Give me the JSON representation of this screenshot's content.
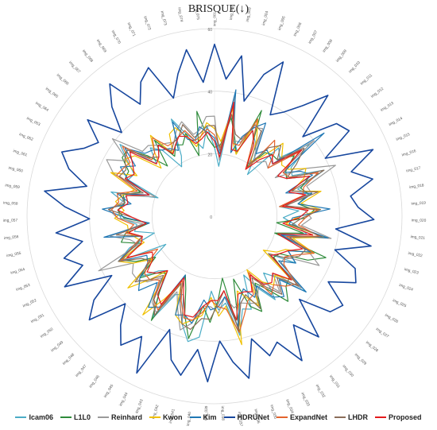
{
  "chart_data": {
    "type": "radar",
    "title": "BRISQUE(↓)",
    "rlim": [
      0,
      60
    ],
    "radial_ticks": [
      0,
      20,
      40,
      60
    ],
    "radial_tick_labels": [
      "0",
      "20",
      "40",
      "60"
    ],
    "grid": true,
    "legend_position": "bottom",
    "categories": [
      "img_001",
      "img_002",
      "img_003",
      "img_004",
      "img_005",
      "img_006",
      "img_007",
      "img_008",
      "img_009",
      "img_010",
      "img_011",
      "img_012",
      "img_013",
      "img_014",
      "img_015",
      "img_016",
      "img_017",
      "img_018",
      "img_019",
      "img_020",
      "img_021",
      "img_022",
      "img_023",
      "img_024",
      "img_025",
      "img_026",
      "img_027",
      "img_028",
      "img_029",
      "img_030",
      "img_031",
      "img_032",
      "img_033",
      "img_034",
      "img_035",
      "img_036",
      "img_037",
      "img_038",
      "img_039",
      "img_040",
      "img_041",
      "img_042",
      "img_043",
      "img_044",
      "img_045",
      "img_046",
      "img_047",
      "img_048",
      "img_049",
      "img_050",
      "img_051",
      "img_052",
      "img_053",
      "img_054",
      "img_055",
      "img_056",
      "img_057",
      "img_058",
      "img_059",
      "img_060",
      "img_061",
      "img_062",
      "img_063",
      "img_064",
      "img_065",
      "img_066",
      "img_067",
      "img_068",
      "img_069",
      "img_070",
      "img_071",
      "img_072",
      "img_073",
      "img_074",
      "img_075"
    ],
    "series": [
      {
        "name": "Icam06",
        "color": "#4bacc6",
        "values": [
          22,
          16,
          40,
          25,
          22,
          30,
          27,
          24,
          17,
          30,
          28,
          38,
          29,
          28,
          38,
          28,
          31,
          21,
          27,
          22,
          26,
          30,
          23,
          33,
          26,
          30,
          21,
          38,
          28,
          24,
          33,
          27,
          21,
          32,
          31,
          39,
          28,
          30,
          24,
          39,
          41,
          36,
          27,
          28,
          38,
          30,
          23,
          25,
          30,
          25,
          18,
          34,
          29,
          20,
          26,
          25,
          30,
          31,
          29,
          34,
          19,
          30,
          29,
          33,
          38,
          25,
          30,
          27,
          19,
          22,
          34,
          28,
          25,
          22,
          29
        ]
      },
      {
        "name": "L1L0",
        "color": "#2e8b3a",
        "values": [
          22,
          23,
          32,
          26,
          21,
          37,
          24,
          19,
          26,
          27,
          27,
          32,
          27,
          26,
          33,
          29,
          31,
          27,
          32,
          29,
          20,
          29,
          20,
          38,
          33,
          24,
          23,
          31,
          32,
          36,
          29,
          25,
          34,
          31,
          21,
          38,
          20,
          27,
          34,
          29,
          40,
          33,
          25,
          21,
          39,
          30,
          24,
          26,
          31,
          23,
          29,
          33,
          25,
          31,
          29,
          21,
          29,
          31,
          29,
          30,
          25,
          31,
          31,
          35,
          35,
          29,
          22,
          31,
          23,
          26,
          25,
          28,
          20,
          34,
          25
        ]
      },
      {
        "name": "Reinhard",
        "color": "#9a9a9a",
        "values": [
          32,
          18,
          39,
          25,
          25,
          31,
          32,
          23,
          22,
          24,
          23,
          40,
          23,
          33,
          42,
          31,
          32,
          23,
          29,
          31,
          28,
          38,
          23,
          32,
          37,
          26,
          26,
          36,
          26,
          32,
          26,
          27,
          31,
          30,
          29,
          30,
          26,
          31,
          29,
          29,
          35,
          38,
          32,
          27,
          36,
          34,
          26,
          30,
          32,
          32,
          30,
          41,
          26,
          28,
          34,
          23,
          31,
          34,
          30,
          29,
          20,
          35,
          39,
          33,
          41,
          31,
          31,
          29,
          28,
          27,
          30,
          32,
          27,
          28,
          32
        ]
      },
      {
        "name": "Kwon",
        "color": "#f0c000",
        "values": [
          28,
          24,
          35,
          24,
          21,
          34,
          28,
          21,
          24,
          32,
          29,
          27,
          28,
          33,
          31,
          26,
          35,
          28,
          34,
          26,
          23,
          36,
          26,
          34,
          25,
          23,
          19,
          32,
          27,
          29,
          26,
          20,
          32,
          28,
          25,
          42,
          29,
          32,
          26,
          32,
          34,
          36,
          34,
          24,
          31,
          39,
          23,
          29,
          36,
          24,
          30,
          34,
          24,
          26,
          28,
          28,
          32,
          29,
          32,
          30,
          27,
          36,
          28,
          34,
          32,
          23,
          28,
          33,
          24,
          30,
          31,
          27,
          23,
          26,
          30
        ]
      },
      {
        "name": "Kim",
        "color": "#1f77b4",
        "values": [
          25,
          20,
          41,
          21,
          27,
          31,
          34,
          24,
          27,
          26,
          25,
          44,
          26,
          31,
          34,
          24,
          32,
          27,
          37,
          25,
          24,
          37,
          22,
          33,
          26,
          30,
          25,
          38,
          29,
          34,
          32,
          26,
          29,
          25,
          28,
          36,
          26,
          29,
          30,
          27,
          35,
          33,
          34,
          21,
          34,
          36,
          28,
          34,
          31,
          26,
          25,
          34,
          28,
          24,
          36,
          21,
          28,
          36,
          27,
          32,
          22,
          30,
          34,
          30,
          36,
          30,
          29,
          27,
          26,
          24,
          33,
          26,
          25,
          29,
          27
        ]
      },
      {
        "name": "HDRUNet",
        "color": "#17479e",
        "values": [
          55,
          44,
          52,
          38,
          48,
          54,
          37,
          40,
          45,
          53,
          38,
          49,
          51,
          40,
          55,
          46,
          52,
          44,
          46,
          51,
          39,
          51,
          40,
          48,
          50,
          42,
          50,
          48,
          38,
          51,
          43,
          54,
          45,
          48,
          41,
          53,
          47,
          40,
          53,
          43,
          52,
          48,
          39,
          56,
          45,
          51,
          46,
          40,
          52,
          47,
          38,
          53,
          45,
          50,
          43,
          51,
          40,
          48,
          55,
          42,
          49,
          53,
          47,
          44,
          51,
          40,
          48,
          54,
          43,
          49,
          52,
          40,
          47,
          54,
          43
        ]
      },
      {
        "name": "ExpandNet",
        "color": "#e4642d",
        "values": [
          26,
          22,
          36,
          24,
          24,
          34,
          24,
          18,
          31,
          28,
          23,
          34,
          26,
          27,
          36,
          30,
          29,
          21,
          33,
          29,
          27,
          34,
          24,
          34,
          29,
          26,
          27,
          34,
          32,
          29,
          31,
          21,
          28,
          29,
          33,
          38,
          30,
          29,
          27,
          31,
          34,
          34,
          29,
          23,
          35,
          33,
          27,
          29,
          29,
          26,
          21,
          33,
          28,
          24,
          29,
          26,
          31,
          33,
          31,
          32,
          26,
          34,
          33,
          32,
          37,
          27,
          28,
          32,
          27,
          27,
          28,
          29,
          25,
          26,
          28
        ]
      },
      {
        "name": "LHDR",
        "color": "#8b6e5a",
        "values": [
          29,
          21,
          33,
          27,
          26,
          32,
          31,
          20,
          28,
          31,
          27,
          36,
          31,
          26,
          38,
          26,
          34,
          23,
          34,
          28,
          25,
          35,
          25,
          31,
          30,
          27,
          21,
          35,
          28,
          33,
          28,
          23,
          33,
          27,
          29,
          37,
          24,
          28,
          33,
          33,
          37,
          36,
          30,
          24,
          37,
          33,
          25,
          29,
          33,
          25,
          27,
          34,
          27,
          24,
          32,
          22,
          26,
          34,
          29,
          31,
          24,
          33,
          32,
          34,
          35,
          28,
          26,
          29,
          25,
          27,
          28,
          31,
          26,
          27,
          29
        ]
      },
      {
        "name": "Proposed",
        "color": "#e41a1c",
        "values": [
          24,
          19,
          37,
          22,
          22,
          30,
          26,
          18,
          23,
          27,
          25,
          35,
          24,
          26,
          33,
          25,
          30,
          22,
          30,
          27,
          22,
          32,
          21,
          30,
          26,
          24,
          22,
          32,
          26,
          28,
          27,
          22,
          27,
          26,
          26,
          34,
          24,
          27,
          27,
          29,
          33,
          33,
          27,
          22,
          33,
          31,
          23,
          26,
          28,
          24,
          23,
          31,
          25,
          24,
          28,
          22,
          26,
          31,
          28,
          29,
          22,
          31,
          29,
          31,
          34,
          25,
          26,
          29,
          24,
          26,
          28,
          27,
          24,
          25,
          27
        ]
      }
    ]
  }
}
